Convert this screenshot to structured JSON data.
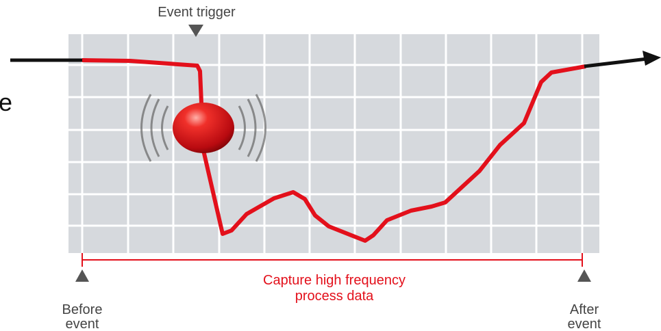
{
  "labels": {
    "event_trigger": "Event trigger",
    "capture": [
      "Capture high frequency",
      "process data"
    ],
    "before": [
      "Before",
      "event"
    ],
    "after": [
      "After",
      "event"
    ],
    "fragment": "e"
  }
}
